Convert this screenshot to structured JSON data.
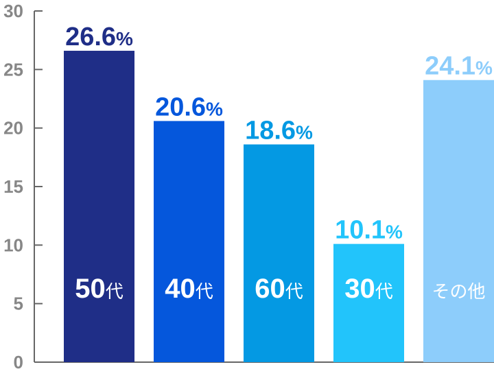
{
  "chart_data": {
    "type": "bar",
    "categories": [
      {
        "num": "50",
        "suffix": "代"
      },
      {
        "num": "40",
        "suffix": "代"
      },
      {
        "num": "60",
        "suffix": "代"
      },
      {
        "num": "30",
        "suffix": "代"
      },
      {
        "num": "",
        "suffix": "その他"
      }
    ],
    "values": [
      26.6,
      20.6,
      18.6,
      10.1,
      24.1
    ],
    "value_labels": [
      "26.6",
      "20.6",
      "18.6",
      "10.1",
      "24.1"
    ],
    "value_suffix": "%",
    "colors": [
      "#1f2e87",
      "#0557dc",
      "#0499e3",
      "#22c4fb",
      "#8dcdfb"
    ],
    "yticks": [
      0,
      5,
      10,
      15,
      20,
      25,
      30
    ],
    "ylim": [
      0,
      30
    ],
    "axis_color": "#666666",
    "tick_color": "#878787",
    "grid": false,
    "legend": "none",
    "title": "",
    "xlabel": "",
    "ylabel": ""
  }
}
